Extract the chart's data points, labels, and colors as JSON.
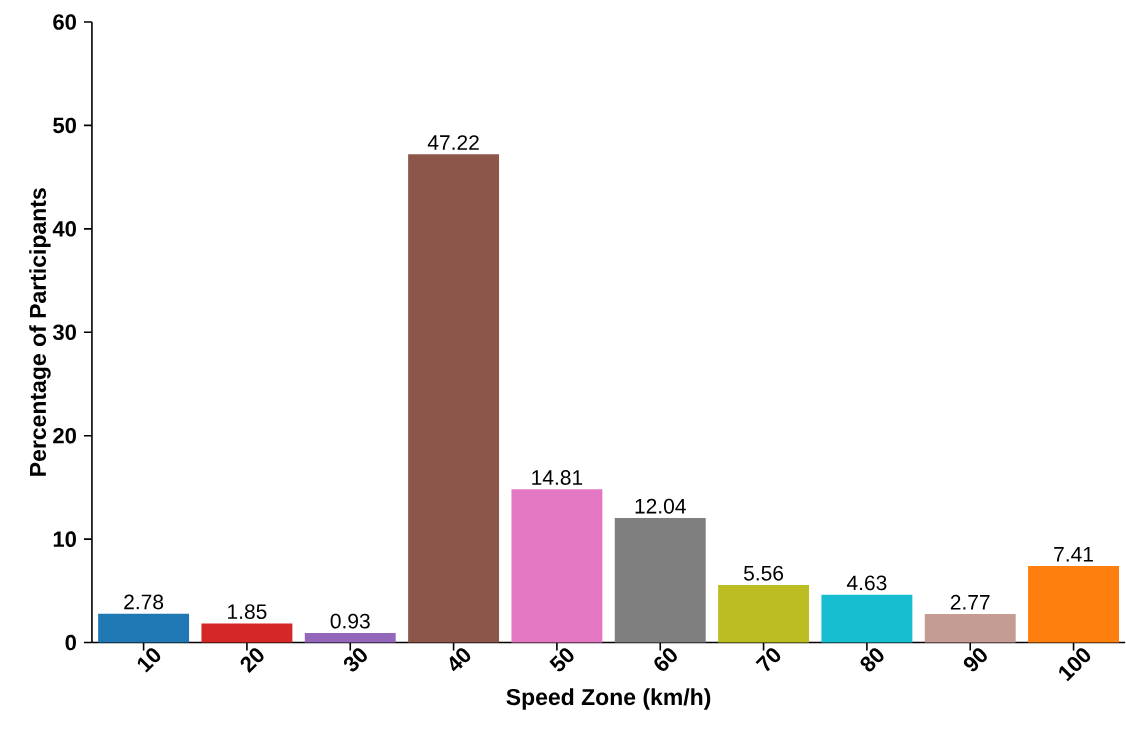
{
  "chart_data": {
    "type": "bar",
    "xlabel": "Speed Zone (km/h)",
    "ylabel": "Percentage of Participants",
    "categories": [
      "10",
      "20",
      "30",
      "40",
      "50",
      "60",
      "70",
      "80",
      "90",
      "100"
    ],
    "values": [
      2.78,
      1.85,
      0.93,
      47.22,
      14.81,
      12.04,
      5.56,
      4.63,
      2.77,
      7.41
    ],
    "colors": [
      "#1f77b4",
      "#d62728",
      "#9467bd",
      "#8c564b",
      "#e377c2",
      "#7f7f7f",
      "#bcbd22",
      "#17becf",
      "#c49c94",
      "#ff7f0e"
    ],
    "ylim": [
      0,
      60
    ],
    "yticks": [
      0,
      10,
      20,
      30,
      40,
      50,
      60
    ],
    "data_labels": true
  }
}
